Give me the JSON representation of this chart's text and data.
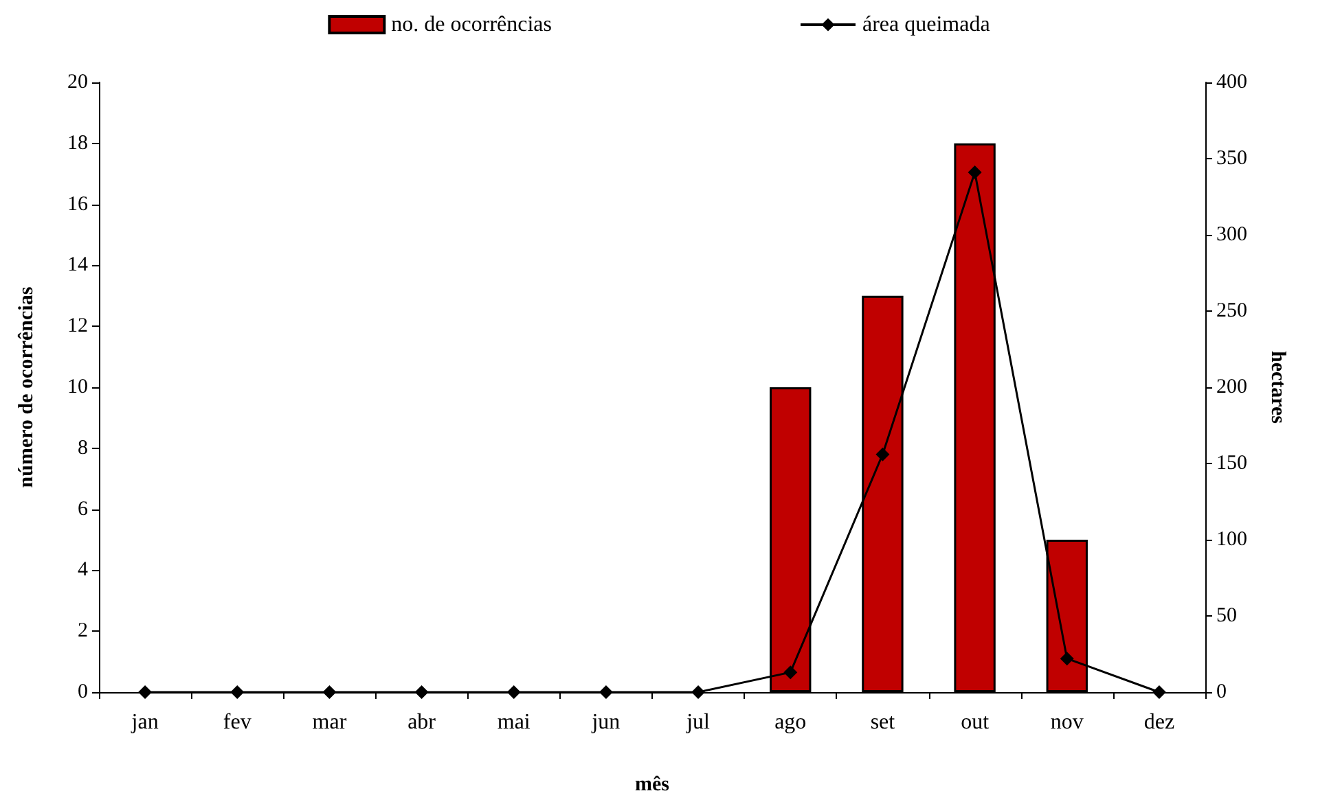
{
  "chart_data": {
    "type": "bar",
    "xlabel": "mês",
    "ylabel": "número de ocorrências",
    "y2label": "hectares",
    "categories": [
      "jan",
      "fev",
      "mar",
      "abr",
      "mai",
      "jun",
      "jul",
      "ago",
      "set",
      "out",
      "nov",
      "dez"
    ],
    "series": [
      {
        "name": "no. de ocorrências",
        "color": "#c00000",
        "values": [
          0,
          0,
          0,
          0,
          0,
          0,
          0,
          10,
          13,
          18,
          5,
          0
        ]
      },
      {
        "name": "área queimada",
        "type": "line",
        "axis": "y2",
        "color": "#000000",
        "values": [
          0,
          0,
          0,
          0,
          0,
          0,
          0,
          13,
          156,
          341,
          22,
          0
        ]
      }
    ],
    "ylim": [
      0,
      20
    ],
    "yticks": [
      0,
      2,
      4,
      6,
      8,
      10,
      12,
      14,
      16,
      18,
      20
    ],
    "y2lim": [
      0,
      400
    ],
    "y2ticks": [
      0,
      50,
      100,
      150,
      200,
      250,
      300,
      350,
      400
    ],
    "grid": false,
    "legend": "top",
    "marker": "diamond",
    "line_style": "solid"
  }
}
